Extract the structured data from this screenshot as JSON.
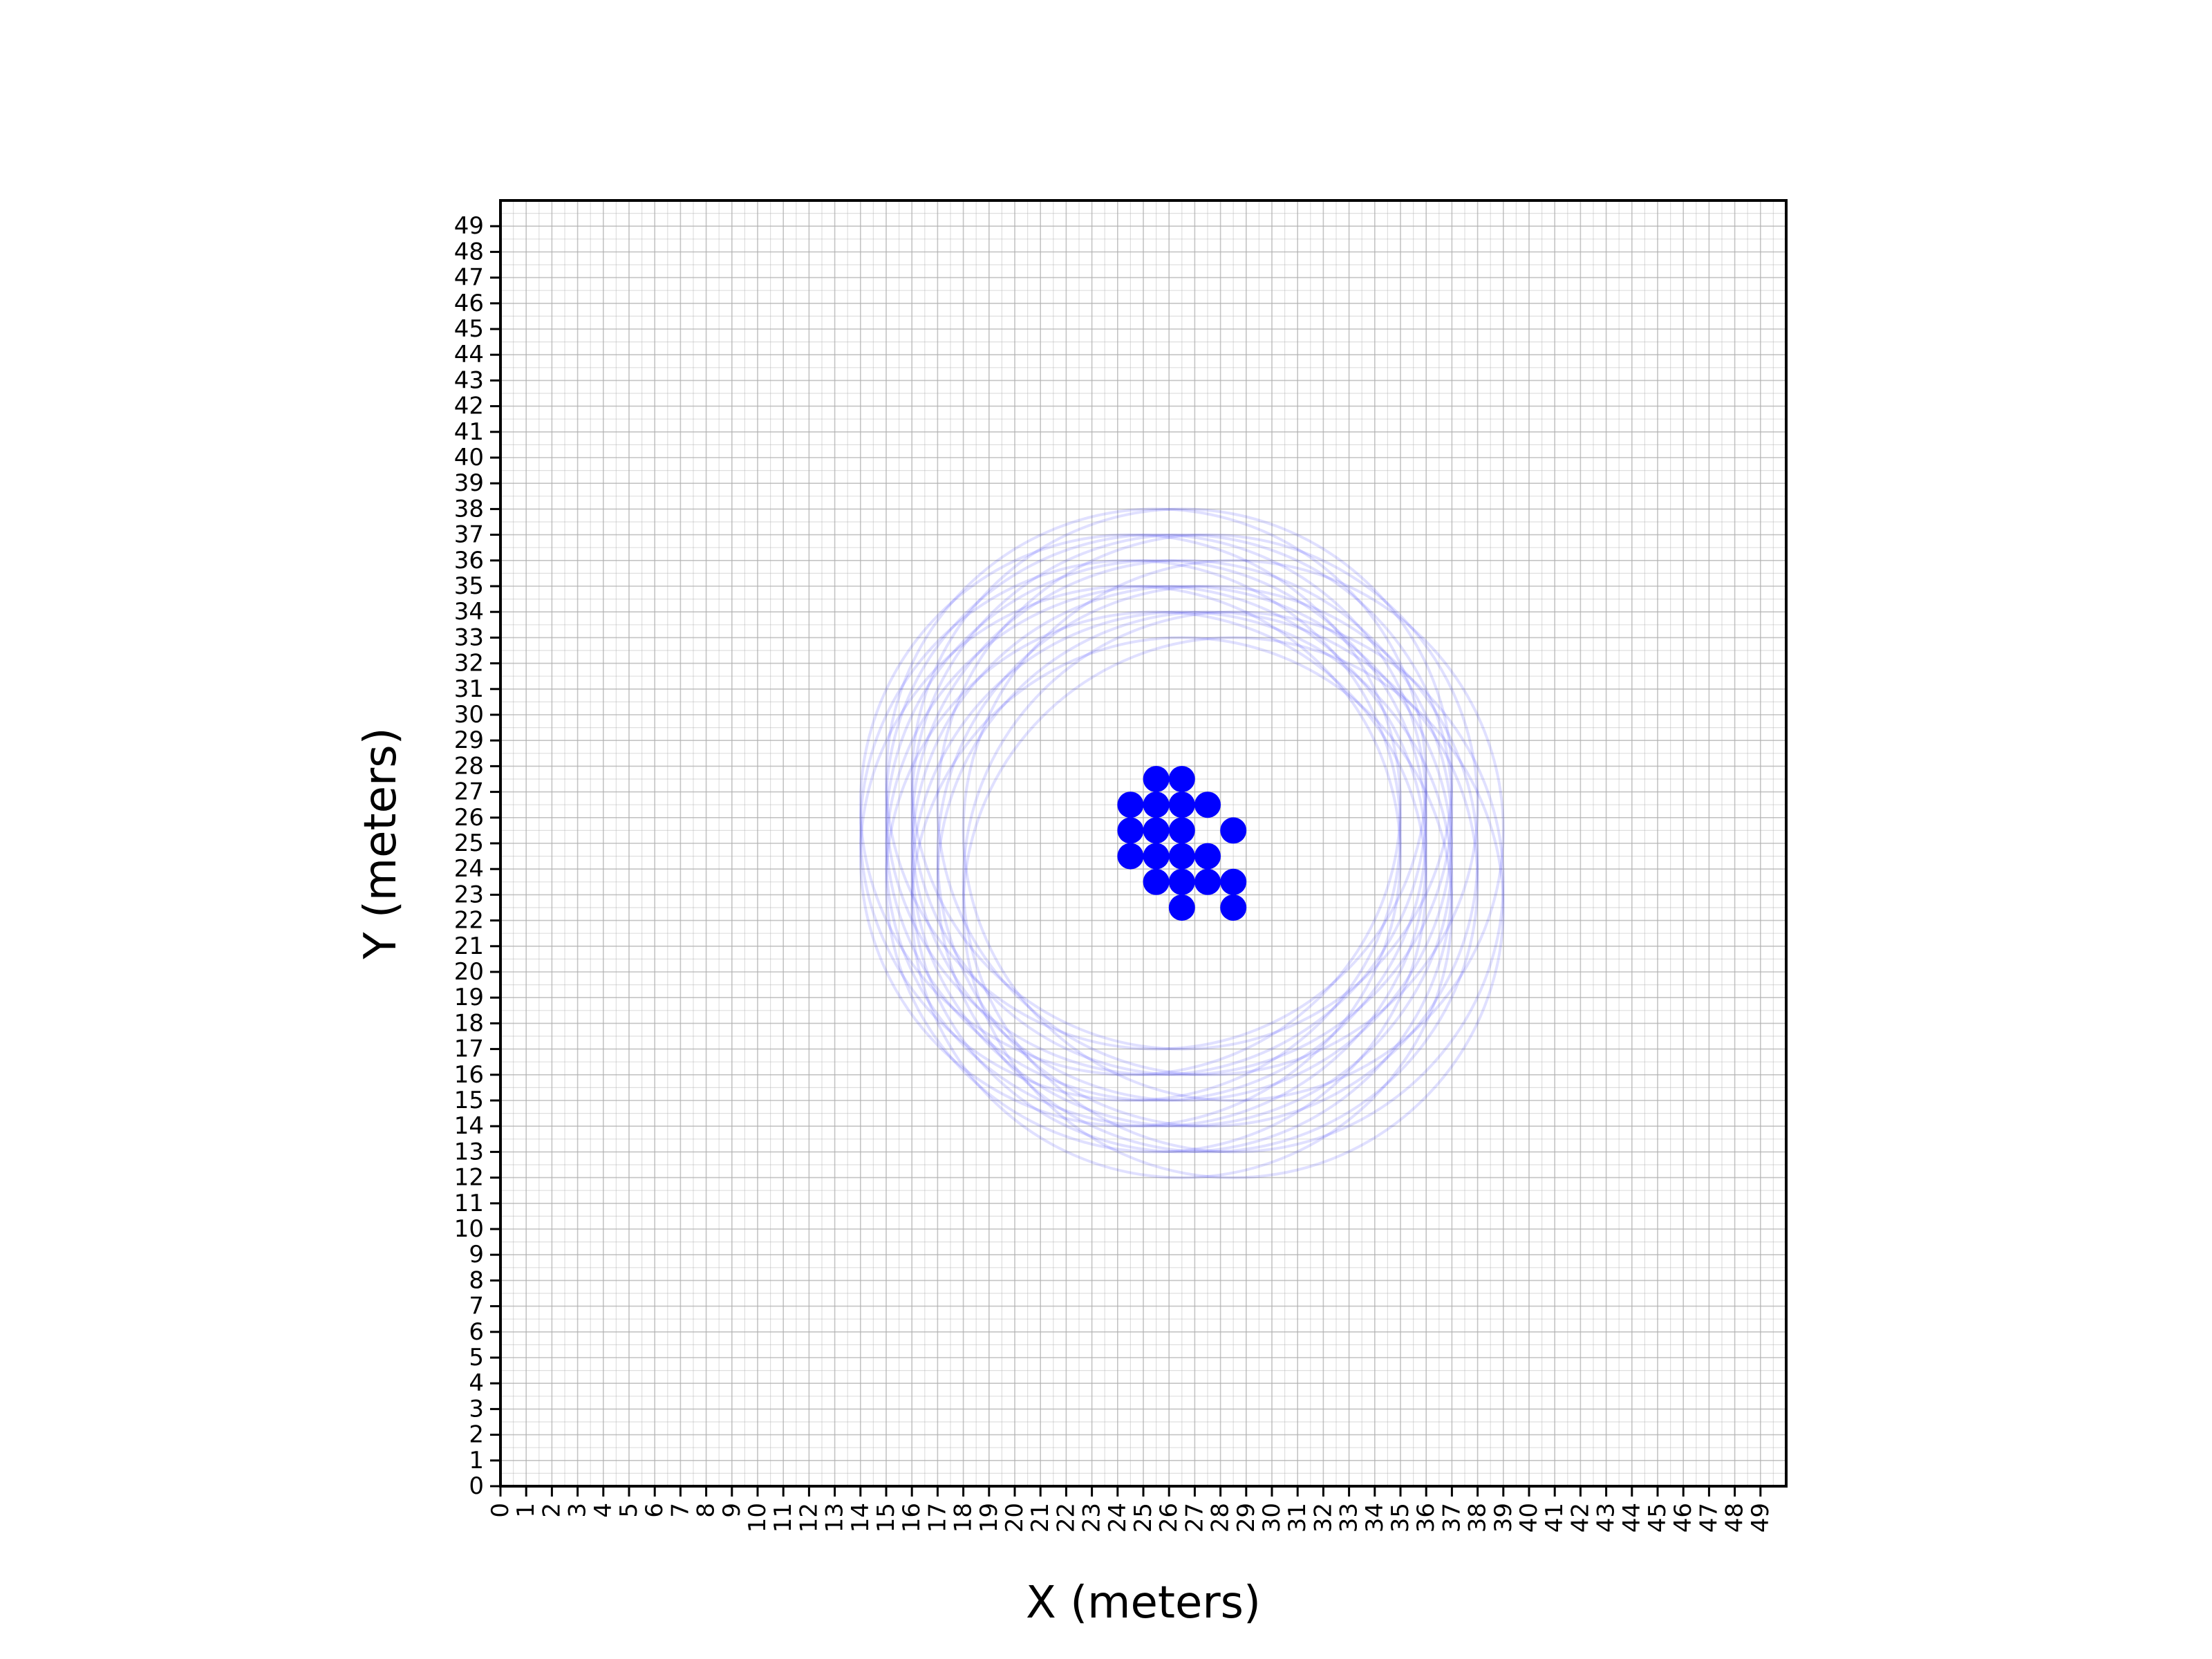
{
  "chart_data": {
    "type": "scatter",
    "title": "",
    "xlabel": "X (meters)",
    "ylabel": "Y (meters)",
    "xlim": [
      0,
      50
    ],
    "ylim": [
      0,
      50
    ],
    "grid": "minor",
    "x_ticks": [
      0,
      1,
      2,
      3,
      4,
      5,
      6,
      7,
      8,
      9,
      10,
      11,
      12,
      13,
      14,
      15,
      16,
      17,
      18,
      19,
      20,
      21,
      22,
      23,
      24,
      25,
      26,
      27,
      28,
      29,
      30,
      31,
      32,
      33,
      34,
      35,
      36,
      37,
      38,
      39,
      40,
      41,
      42,
      43,
      44,
      45,
      46,
      47,
      48,
      49
    ],
    "y_ticks": [
      0,
      1,
      2,
      3,
      4,
      5,
      6,
      7,
      8,
      9,
      10,
      11,
      12,
      13,
      14,
      15,
      16,
      17,
      18,
      19,
      20,
      21,
      22,
      23,
      24,
      25,
      26,
      27,
      28,
      29,
      30,
      31,
      32,
      33,
      34,
      35,
      36,
      37,
      38,
      39,
      40,
      41,
      42,
      43,
      44,
      45,
      46,
      47,
      48,
      49
    ],
    "point_color": "#0000ff",
    "ring_color": "#0000ff",
    "points": [
      {
        "x": 25.5,
        "y": 27.5
      },
      {
        "x": 26.5,
        "y": 27.5
      },
      {
        "x": 24.5,
        "y": 26.5
      },
      {
        "x": 25.5,
        "y": 26.5
      },
      {
        "x": 26.5,
        "y": 26.5
      },
      {
        "x": 27.5,
        "y": 26.5
      },
      {
        "x": 24.5,
        "y": 25.5
      },
      {
        "x": 25.5,
        "y": 25.5
      },
      {
        "x": 26.5,
        "y": 25.5
      },
      {
        "x": 28.5,
        "y": 25.5
      },
      {
        "x": 24.5,
        "y": 24.5
      },
      {
        "x": 25.5,
        "y": 24.5
      },
      {
        "x": 26.5,
        "y": 24.5
      },
      {
        "x": 27.5,
        "y": 24.5
      },
      {
        "x": 25.5,
        "y": 23.5
      },
      {
        "x": 26.5,
        "y": 23.5
      },
      {
        "x": 27.5,
        "y": 23.5
      },
      {
        "x": 28.5,
        "y": 23.5
      },
      {
        "x": 26.5,
        "y": 22.5
      },
      {
        "x": 28.5,
        "y": 22.5
      }
    ],
    "rings": [
      {
        "cx": 25.5,
        "cy": 27.5,
        "r": 10.5
      },
      {
        "cx": 26.5,
        "cy": 27.5,
        "r": 10.5
      },
      {
        "cx": 24.5,
        "cy": 26.5,
        "r": 10.5
      },
      {
        "cx": 25.5,
        "cy": 26.5,
        "r": 10.5
      },
      {
        "cx": 26.5,
        "cy": 26.5,
        "r": 10.5
      },
      {
        "cx": 27.5,
        "cy": 26.5,
        "r": 10.5
      },
      {
        "cx": 24.5,
        "cy": 25.5,
        "r": 10.5
      },
      {
        "cx": 25.5,
        "cy": 25.5,
        "r": 10.5
      },
      {
        "cx": 26.5,
        "cy": 25.5,
        "r": 10.5
      },
      {
        "cx": 28.5,
        "cy": 25.5,
        "r": 10.5
      },
      {
        "cx": 24.5,
        "cy": 24.5,
        "r": 10.5
      },
      {
        "cx": 25.5,
        "cy": 24.5,
        "r": 10.5
      },
      {
        "cx": 26.5,
        "cy": 24.5,
        "r": 10.5
      },
      {
        "cx": 27.5,
        "cy": 24.5,
        "r": 10.5
      },
      {
        "cx": 25.5,
        "cy": 23.5,
        "r": 10.5
      },
      {
        "cx": 26.5,
        "cy": 23.5,
        "r": 10.5
      },
      {
        "cx": 27.5,
        "cy": 23.5,
        "r": 10.5
      },
      {
        "cx": 28.5,
        "cy": 23.5,
        "r": 10.5
      },
      {
        "cx": 26.5,
        "cy": 22.5,
        "r": 10.5
      },
      {
        "cx": 28.5,
        "cy": 22.5,
        "r": 10.5
      }
    ]
  }
}
